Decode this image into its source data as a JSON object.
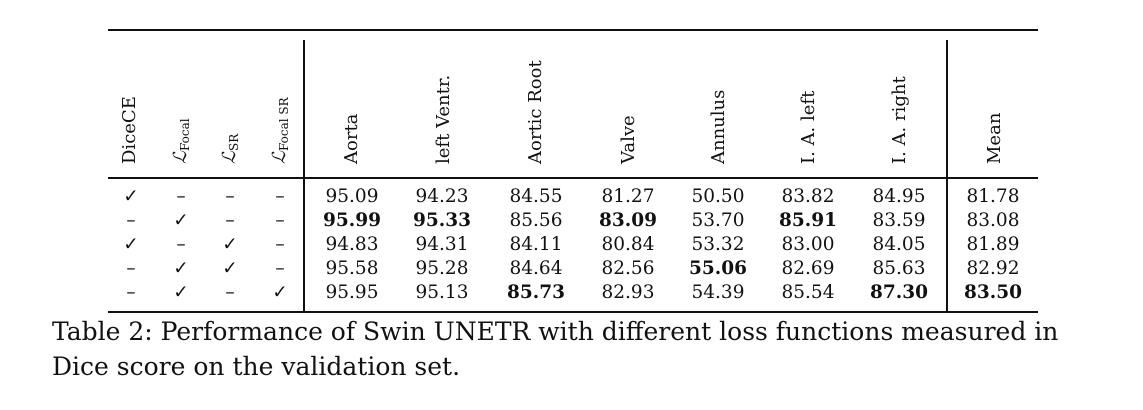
{
  "table": {
    "headers": {
      "dicece": "DiceCE",
      "focal": {
        "symbol": "ℒ",
        "sub": "Focal"
      },
      "sr": {
        "symbol": "ℒ",
        "sub": "SR"
      },
      "focal_sr": {
        "symbol": "ℒ",
        "sub": "Focal SR"
      },
      "aorta": "Aorta",
      "left_ventr": "left Ventr.",
      "aortic_root": "Aortic Root",
      "valve": "Valve",
      "annulus": "Annulus",
      "la_left": "I. A. left",
      "la_right": "I. A. right",
      "mean": "Mean"
    },
    "rows": [
      {
        "c0": "✓",
        "c1": "–",
        "c2": "–",
        "c3": "–",
        "v0": "95.09",
        "v1": "94.23",
        "v2": "84.55",
        "v3": "81.27",
        "v4": "50.50",
        "v5": "83.82",
        "v6": "84.95",
        "v7": "81.78"
      },
      {
        "c0": "–",
        "c1": "✓",
        "c2": "–",
        "c3": "–",
        "v0": "95.99",
        "v1": "95.33",
        "v2": "85.56",
        "v3": "83.09",
        "v4": "53.70",
        "v5": "85.91",
        "v6": "83.59",
        "v7": "83.08"
      },
      {
        "c0": "✓",
        "c1": "–",
        "c2": "✓",
        "c3": "–",
        "v0": "94.83",
        "v1": "94.31",
        "v2": "84.11",
        "v3": "80.84",
        "v4": "53.32",
        "v5": "83.00",
        "v6": "84.05",
        "v7": "81.89"
      },
      {
        "c0": "–",
        "c1": "✓",
        "c2": "✓",
        "c3": "–",
        "v0": "95.58",
        "v1": "95.28",
        "v2": "84.64",
        "v3": "82.56",
        "v4": "55.06",
        "v5": "82.69",
        "v6": "85.63",
        "v7": "82.92"
      },
      {
        "c0": "–",
        "c1": "✓",
        "c2": "–",
        "c3": "✓",
        "v0": "95.95",
        "v1": "95.13",
        "v2": "85.73",
        "v3": "82.93",
        "v4": "54.39",
        "v5": "85.54",
        "v6": "87.30",
        "v7": "83.50"
      }
    ]
  },
  "caption": "Table 2: Performance of Swin UNETR with different loss functions measured in Dice score on the validation set."
}
